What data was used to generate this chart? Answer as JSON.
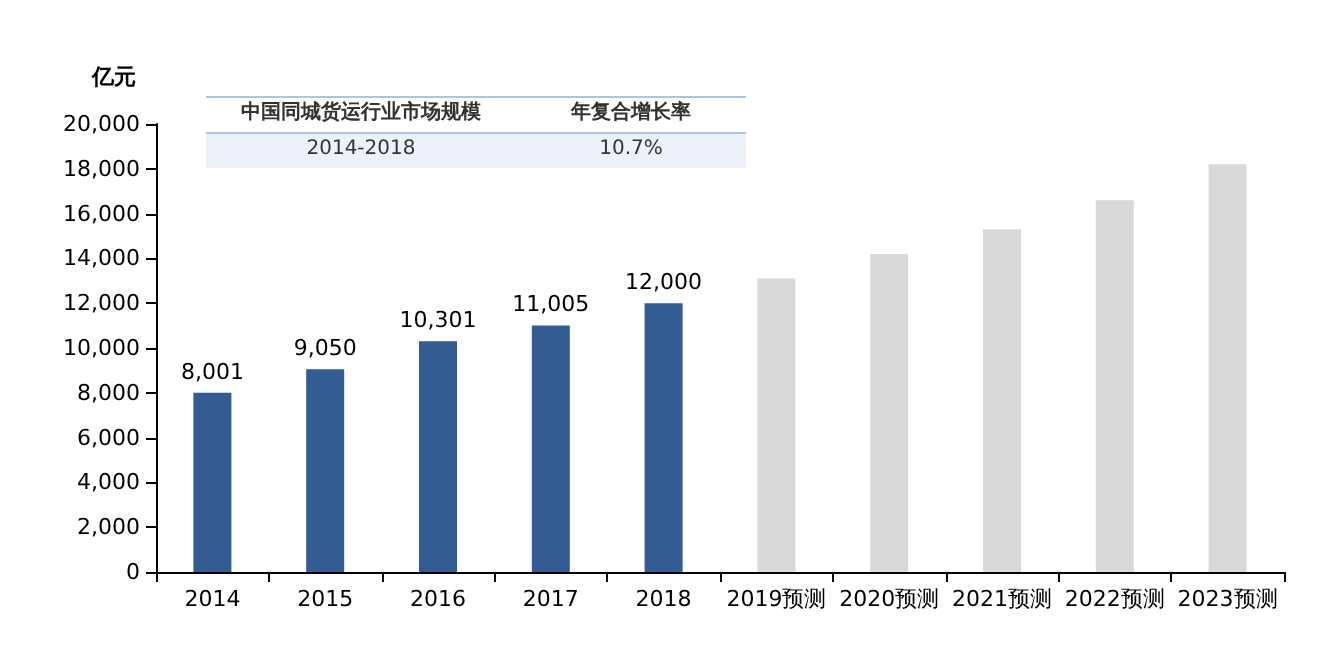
{
  "chart_data": {
    "type": "bar",
    "ylabel": "亿元",
    "categories": [
      "2014",
      "2015",
      "2016",
      "2017",
      "2018",
      "2019预测",
      "2020预测",
      "2021预测",
      "2022预测",
      "2023预测"
    ],
    "values": [
      8001,
      9050,
      10301,
      11005,
      12000,
      13100,
      14200,
      15300,
      16600,
      18200
    ],
    "colors": [
      "#335d92",
      "#335d92",
      "#335d92",
      "#335d92",
      "#335d92",
      "#d9d9d9",
      "#d9d9d9",
      "#d9d9d9",
      "#d9d9d9",
      "#d9d9d9"
    ],
    "value_labels": [
      "8,001",
      "9,050",
      "10,301",
      "11,005",
      "12,000",
      null,
      null,
      null,
      null,
      null
    ],
    "ylim": [
      0,
      20000
    ],
    "yticks": [
      0,
      {
        "value": 2000,
        "label": "2,000"
      },
      {
        "value": 4000,
        "label": "4,000"
      },
      {
        "value": 6000,
        "label": "6,000"
      },
      {
        "value": 8000,
        "label": "8,000"
      },
      {
        "value": 10000,
        "label": "10,000"
      },
      {
        "value": 12000,
        "label": "12,000"
      },
      {
        "value": 14000,
        "label": "14,000"
      },
      {
        "value": 16000,
        "label": "16,000"
      },
      {
        "value": 18000,
        "label": "18,000"
      },
      {
        "value": 20000,
        "label": "20,000"
      }
    ],
    "grid": false,
    "annotations": [
      "中国同城货运行业市场规模",
      "年复合增长率",
      "2014-2018",
      "10.7%"
    ]
  }
}
